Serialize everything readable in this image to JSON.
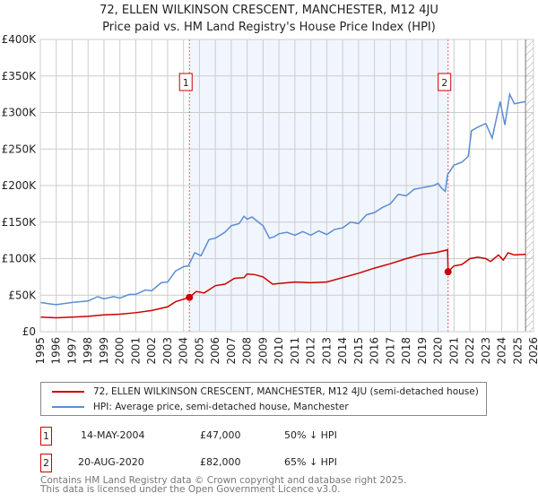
{
  "title": "72, ELLEN WILKINSON CRESCENT, MANCHESTER, M12 4JU",
  "subtitle": "Price paid vs. HM Land Registry's House Price Index (HPI)",
  "chart_data": {
    "type": "line",
    "ylim": [
      0,
      400000
    ],
    "xlim": [
      1995,
      2026
    ],
    "yticks": [
      {
        "v": 0,
        "l": "£0"
      },
      {
        "v": 50000,
        "l": "£50K"
      },
      {
        "v": 100000,
        "l": "£100K"
      },
      {
        "v": 150000,
        "l": "£150K"
      },
      {
        "v": 200000,
        "l": "£200K"
      },
      {
        "v": 250000,
        "l": "£250K"
      },
      {
        "v": 300000,
        "l": "£300K"
      },
      {
        "v": 350000,
        "l": "£350K"
      },
      {
        "v": 400000,
        "l": "£400K"
      }
    ],
    "xticks": [
      "1995",
      "1996",
      "1997",
      "1998",
      "1999",
      "2000",
      "2001",
      "2002",
      "2003",
      "2004",
      "2005",
      "2006",
      "2007",
      "2008",
      "2009",
      "2010",
      "2011",
      "2012",
      "2013",
      "2014",
      "2015",
      "2016",
      "2017",
      "2018",
      "2019",
      "2020",
      "2021",
      "2022",
      "2023",
      "2024",
      "2025",
      "2026"
    ],
    "series": [
      {
        "name": "HPI: Average price, semi-detached house, Manchester",
        "color": "#5b8ed1",
        "points": [
          [
            1995,
            40000
          ],
          [
            1995.6,
            38000
          ],
          [
            1996,
            37000
          ],
          [
            1997,
            40000
          ],
          [
            1998,
            42000
          ],
          [
            1998.6,
            48000
          ],
          [
            1999,
            45000
          ],
          [
            1999.6,
            48000
          ],
          [
            2000,
            46000
          ],
          [
            2000.6,
            51000
          ],
          [
            2001,
            51000
          ],
          [
            2001.6,
            57000
          ],
          [
            2002,
            56000
          ],
          [
            2002.6,
            67000
          ],
          [
            2003,
            68000
          ],
          [
            2003.5,
            83000
          ],
          [
            2004,
            89000
          ],
          [
            2004.3,
            90000
          ],
          [
            2004.7,
            108000
          ],
          [
            2005.1,
            104000
          ],
          [
            2005.6,
            126000
          ],
          [
            2006,
            128000
          ],
          [
            2006.6,
            136000
          ],
          [
            2007,
            145000
          ],
          [
            2007.5,
            148000
          ],
          [
            2007.8,
            158000
          ],
          [
            2008,
            154000
          ],
          [
            2008.3,
            157000
          ],
          [
            2008.7,
            150000
          ],
          [
            2009,
            145000
          ],
          [
            2009.4,
            128000
          ],
          [
            2009.7,
            130000
          ],
          [
            2010,
            134000
          ],
          [
            2010.5,
            136000
          ],
          [
            2011,
            132000
          ],
          [
            2011.5,
            137000
          ],
          [
            2012,
            132000
          ],
          [
            2012.5,
            138000
          ],
          [
            2013,
            133000
          ],
          [
            2013.5,
            140000
          ],
          [
            2014,
            142000
          ],
          [
            2014.5,
            150000
          ],
          [
            2015,
            148000
          ],
          [
            2015.5,
            160000
          ],
          [
            2016,
            163000
          ],
          [
            2016.5,
            170000
          ],
          [
            2017,
            175000
          ],
          [
            2017.5,
            188000
          ],
          [
            2018,
            186000
          ],
          [
            2018.5,
            195000
          ],
          [
            2019,
            197000
          ],
          [
            2019.7,
            200000
          ],
          [
            2020,
            203000
          ],
          [
            2020.2,
            197000
          ],
          [
            2020.45,
            192000
          ],
          [
            2020.6,
            215000
          ],
          [
            2021,
            228000
          ],
          [
            2021.5,
            232000
          ],
          [
            2021.9,
            240000
          ],
          [
            2022.1,
            275000
          ],
          [
            2022.5,
            280000
          ],
          [
            2023,
            285000
          ],
          [
            2023.4,
            265000
          ],
          [
            2023.9,
            315000
          ],
          [
            2024.2,
            283000
          ],
          [
            2024.5,
            325000
          ],
          [
            2024.8,
            312000
          ],
          [
            2025.5,
            315000
          ]
        ]
      },
      {
        "name": "72, ELLEN WILKINSON CRESCENT, MANCHESTER, M12 4JU (semi-detached house)",
        "color": "#cc0000",
        "points": [
          [
            1995,
            20000
          ],
          [
            1996,
            19000
          ],
          [
            1997,
            20000
          ],
          [
            1998,
            21000
          ],
          [
            1999,
            23000
          ],
          [
            2000,
            24000
          ],
          [
            2001,
            26000
          ],
          [
            2002,
            29000
          ],
          [
            2003,
            34000
          ],
          [
            2003.5,
            41000
          ],
          [
            2004.37,
            47000
          ],
          [
            2004.8,
            55000
          ],
          [
            2005.3,
            53000
          ],
          [
            2006,
            63000
          ],
          [
            2006.6,
            65000
          ],
          [
            2007.2,
            73000
          ],
          [
            2007.8,
            74000
          ],
          [
            2008,
            79000
          ],
          [
            2008.5,
            78000
          ],
          [
            2009,
            75000
          ],
          [
            2009.6,
            65000
          ],
          [
            2010,
            66000
          ],
          [
            2011,
            68000
          ],
          [
            2012,
            67000
          ],
          [
            2013,
            68000
          ],
          [
            2014,
            74000
          ],
          [
            2015,
            80000
          ],
          [
            2016,
            87000
          ],
          [
            2017,
            93000
          ],
          [
            2018,
            100000
          ],
          [
            2019,
            106000
          ],
          [
            2019.8,
            108000
          ],
          [
            2020.6,
            112000
          ],
          [
            2020.63,
            82000
          ],
          [
            2021,
            90000
          ],
          [
            2021.5,
            92000
          ],
          [
            2022,
            100000
          ],
          [
            2022.5,
            102000
          ],
          [
            2023,
            100000
          ],
          [
            2023.3,
            96000
          ],
          [
            2023.8,
            105000
          ],
          [
            2024.1,
            98000
          ],
          [
            2024.4,
            108000
          ],
          [
            2024.8,
            105000
          ],
          [
            2025.5,
            106000
          ]
        ]
      }
    ],
    "sales": [
      {
        "id": "1",
        "x": 2004.37,
        "y": 47000,
        "date": "14-MAY-2004",
        "price": "£47,000",
        "hpi": "50% ↓ HPI"
      },
      {
        "id": "2",
        "x": 2020.63,
        "y": 82000,
        "date": "20-AUG-2020",
        "price": "£82,000",
        "hpi": "65% ↓ HPI"
      }
    ],
    "forecast_from": 2025.5
  },
  "legend": [
    "72, ELLEN WILKINSON CRESCENT, MANCHESTER, M12 4JU (semi-detached house)",
    "HPI: Average price, semi-detached house, Manchester"
  ],
  "footer": [
    "Contains HM Land Registry data © Crown copyright and database right 2025.",
    "This data is licensed under the Open Government Licence v3.0."
  ]
}
